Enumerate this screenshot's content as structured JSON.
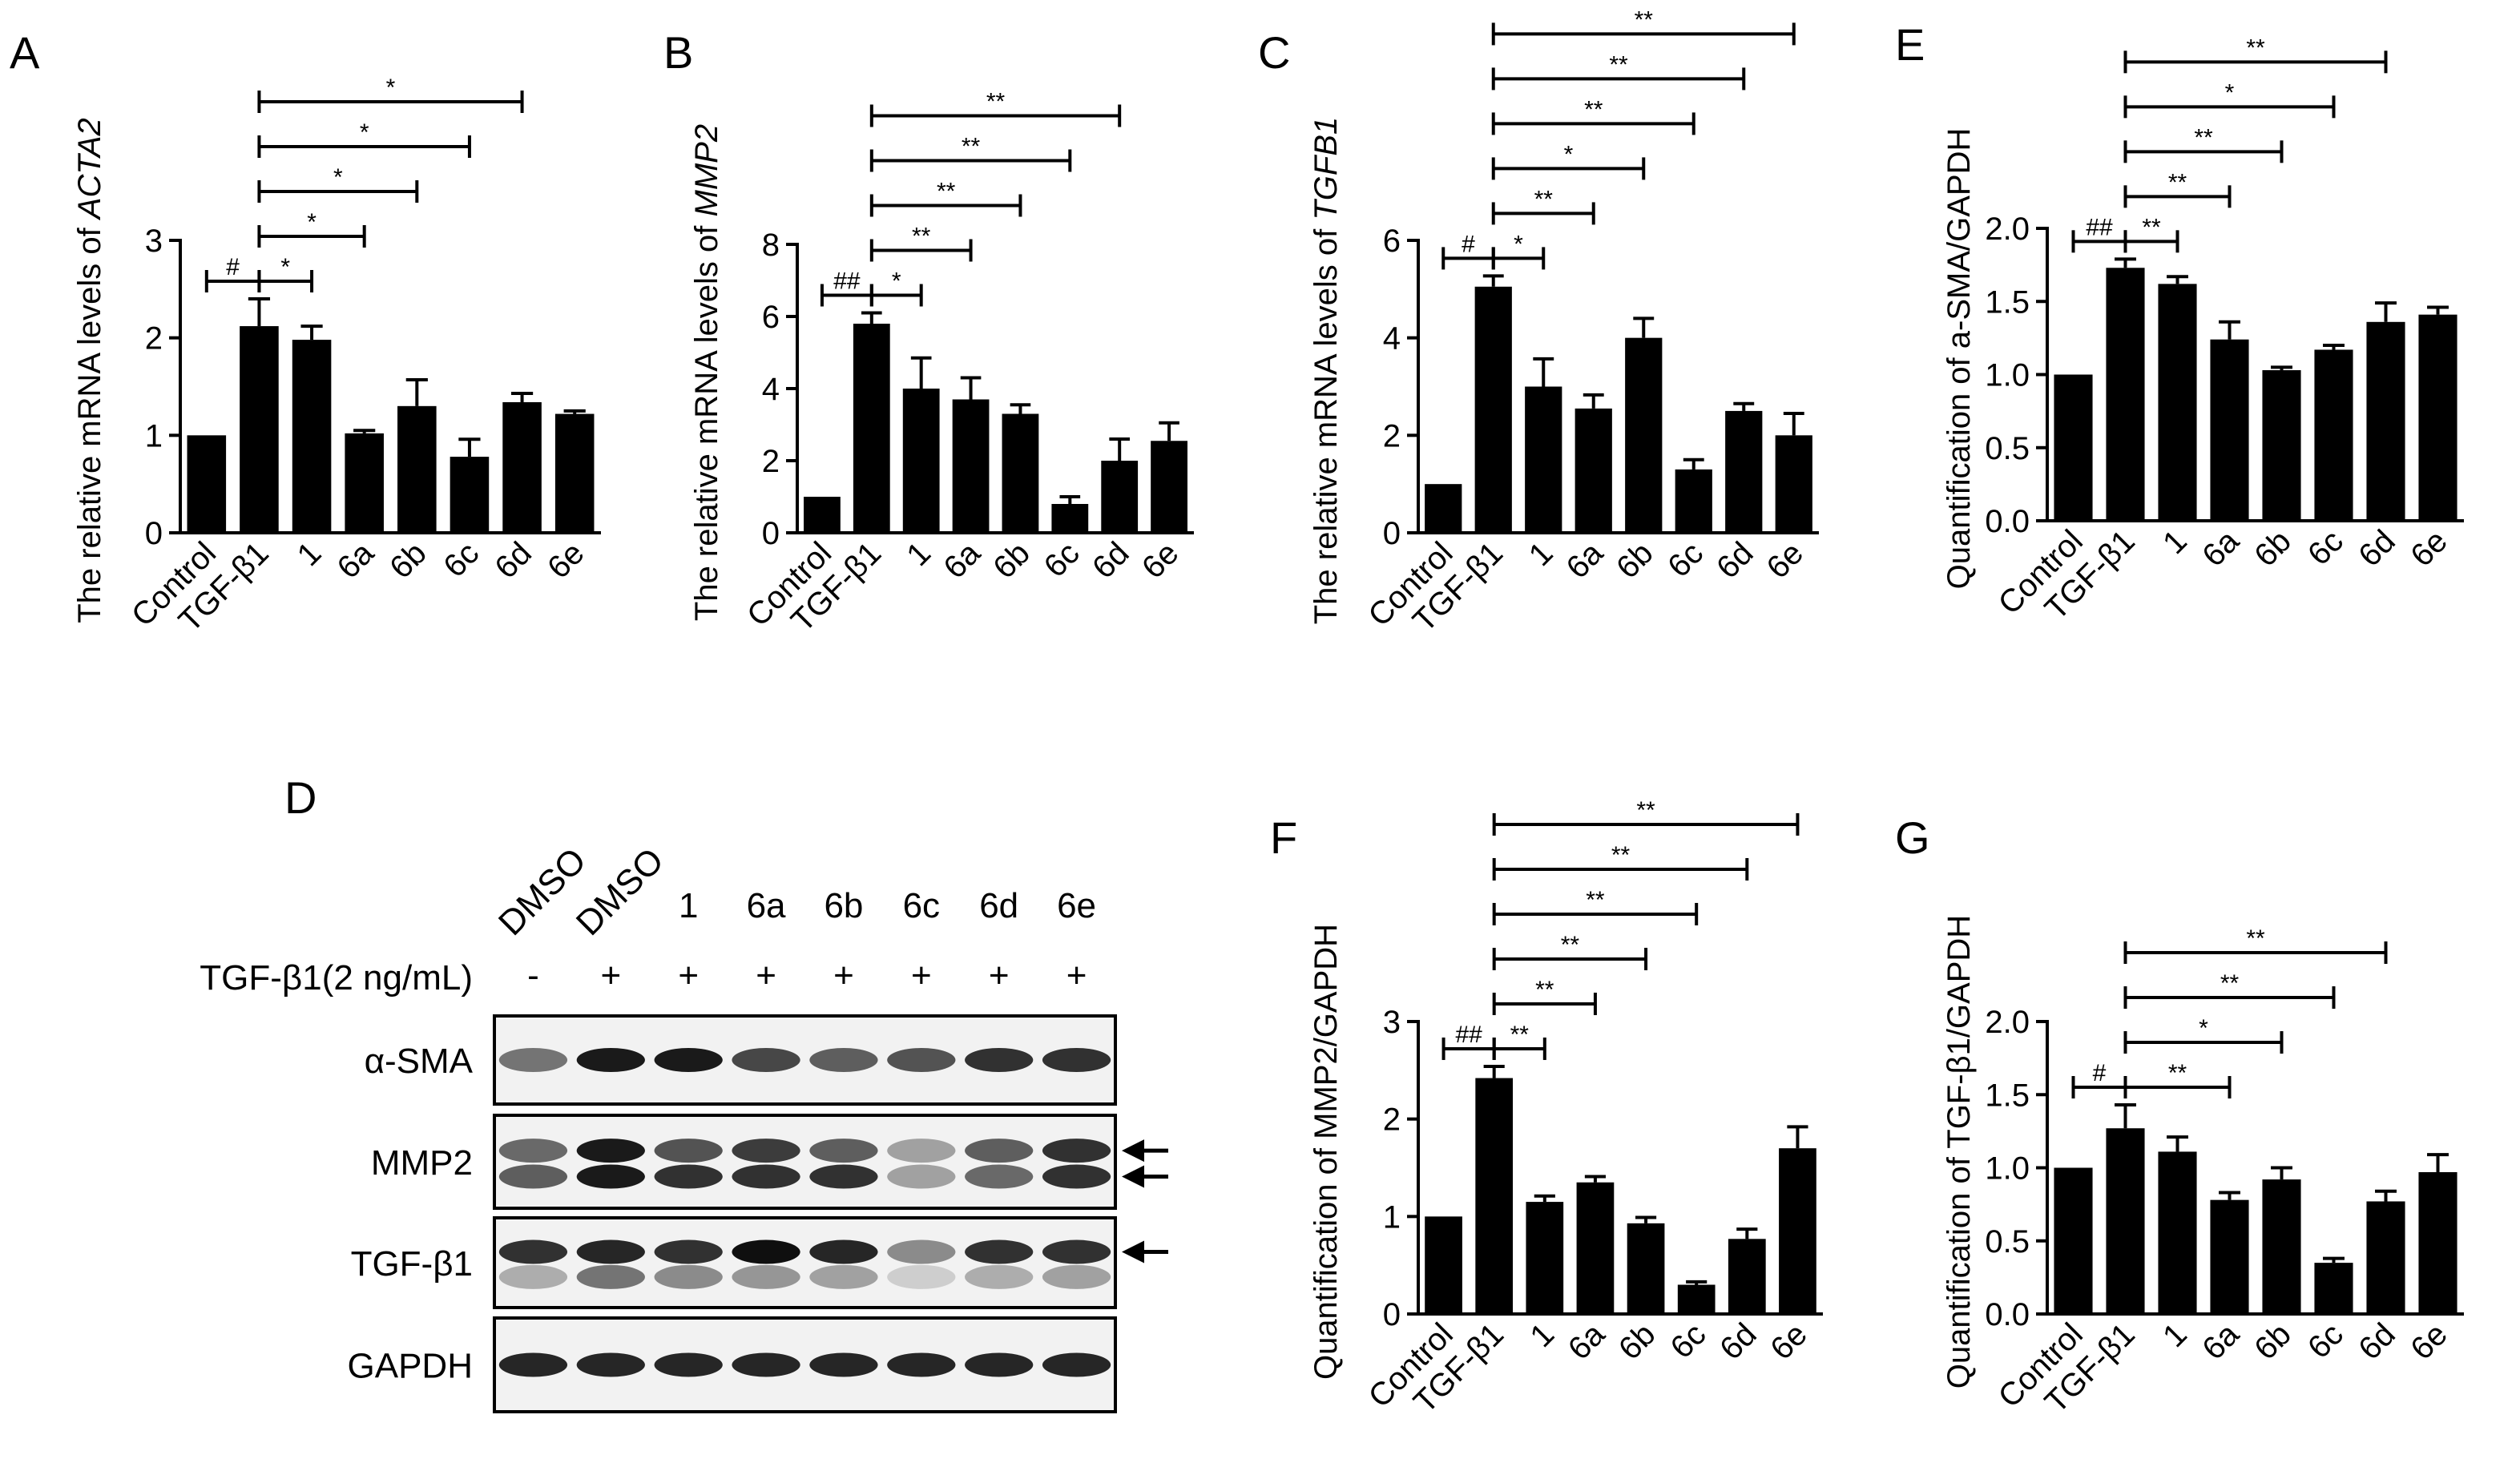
{
  "figure": {
    "panel_letters": [
      "A",
      "B",
      "C",
      "E",
      "D",
      "F",
      "G"
    ]
  },
  "chart_data": [
    {
      "panel": "A",
      "type": "bar",
      "ylabel_prefix": "The relative mRNA levels of ",
      "ylabel_gene": "ACTA2",
      "categories": [
        "Control",
        "TGF-β1",
        "1",
        "6a",
        "6b",
        "6c",
        "6d",
        "6e"
      ],
      "values": [
        1.0,
        2.12,
        1.98,
        1.02,
        1.3,
        0.78,
        1.34,
        1.22
      ],
      "errors": [
        0,
        0.28,
        0.14,
        0.03,
        0.27,
        0.18,
        0.09,
        0.03
      ],
      "ylim": [
        0,
        3
      ],
      "yticks": [
        "0",
        "1",
        "2",
        "3"
      ],
      "annotations": [
        {
          "from": 0,
          "to": 1,
          "label": "#"
        },
        {
          "from": 1,
          "to": 2,
          "label": "*"
        },
        {
          "from": 1,
          "to": 3,
          "label": "*"
        },
        {
          "from": 1,
          "to": 4,
          "label": "*"
        },
        {
          "from": 1,
          "to": 5,
          "label": "*"
        },
        {
          "from": 1,
          "to": 6,
          "label": "*"
        }
      ]
    },
    {
      "panel": "B",
      "type": "bar",
      "ylabel_prefix": "The relative mRNA levels of ",
      "ylabel_gene": "MMP2",
      "categories": [
        "Control",
        "TGF-β1",
        "1",
        "6a",
        "6b",
        "6c",
        "6d",
        "6e"
      ],
      "values": [
        1.0,
        5.8,
        4.0,
        3.7,
        3.3,
        0.8,
        2.0,
        2.55
      ],
      "errors": [
        0,
        0.3,
        0.85,
        0.6,
        0.25,
        0.2,
        0.6,
        0.5
      ],
      "ylim": [
        0,
        8
      ],
      "yticks": [
        "0",
        "2",
        "4",
        "6",
        "8"
      ],
      "annotations": [
        {
          "from": 0,
          "to": 1,
          "label": "##"
        },
        {
          "from": 1,
          "to": 2,
          "label": "*"
        },
        {
          "from": 1,
          "to": 3,
          "label": "**"
        },
        {
          "from": 1,
          "to": 4,
          "label": "**"
        },
        {
          "from": 1,
          "to": 5,
          "label": "**"
        },
        {
          "from": 1,
          "to": 6,
          "label": "**"
        }
      ]
    },
    {
      "panel": "C",
      "type": "bar",
      "ylabel_prefix": "The relative mRNA levels of ",
      "ylabel_gene": "TGFB1",
      "categories": [
        "Control",
        "TGF-β1",
        "1",
        "6a",
        "6b",
        "6c",
        "6d",
        "6e"
      ],
      "values": [
        1.0,
        5.05,
        3.0,
        2.55,
        4.0,
        1.3,
        2.5,
        2.0
      ],
      "errors": [
        0,
        0.22,
        0.57,
        0.28,
        0.4,
        0.2,
        0.15,
        0.45
      ],
      "ylim": [
        0,
        6
      ],
      "yticks": [
        "0",
        "2",
        "4",
        "6"
      ],
      "annotations": [
        {
          "from": 0,
          "to": 1,
          "label": "#"
        },
        {
          "from": 1,
          "to": 2,
          "label": "*"
        },
        {
          "from": 1,
          "to": 3,
          "label": "**"
        },
        {
          "from": 1,
          "to": 4,
          "label": "*"
        },
        {
          "from": 1,
          "to": 5,
          "label": "**"
        },
        {
          "from": 1,
          "to": 6,
          "label": "**"
        },
        {
          "from": 1,
          "to": 7,
          "label": "**"
        }
      ]
    },
    {
      "panel": "E",
      "type": "bar",
      "ylabel": "Quantification of a-SMA/GAPDH",
      "categories": [
        "Control",
        "TGF-β1",
        "1",
        "6a",
        "6b",
        "6c",
        "6d",
        "6e"
      ],
      "values": [
        1.0,
        1.73,
        1.62,
        1.24,
        1.03,
        1.17,
        1.36,
        1.41
      ],
      "errors": [
        0,
        0.06,
        0.05,
        0.12,
        0.02,
        0.03,
        0.13,
        0.05
      ],
      "ylim": [
        0,
        2
      ],
      "yticks": [
        "0.0",
        "0.5",
        "1.0",
        "1.5",
        "2.0"
      ],
      "annotations": [
        {
          "from": 0,
          "to": 1,
          "label": "##"
        },
        {
          "from": 1,
          "to": 2,
          "label": "**"
        },
        {
          "from": 1,
          "to": 3,
          "label": "**"
        },
        {
          "from": 1,
          "to": 4,
          "label": "**"
        },
        {
          "from": 1,
          "to": 5,
          "label": "*"
        },
        {
          "from": 1,
          "to": 6,
          "label": "**"
        }
      ]
    },
    {
      "panel": "F",
      "type": "bar",
      "ylabel": "Quantification of MMP2/GAPDH",
      "categories": [
        "Control",
        "TGF-β1",
        "1",
        "6a",
        "6b",
        "6c",
        "6d",
        "6e"
      ],
      "values": [
        1.0,
        2.42,
        1.15,
        1.35,
        0.93,
        0.3,
        0.77,
        1.7
      ],
      "errors": [
        0,
        0.12,
        0.06,
        0.06,
        0.06,
        0.03,
        0.1,
        0.22
      ],
      "ylim": [
        0,
        3
      ],
      "yticks": [
        "0",
        "1",
        "2",
        "3"
      ],
      "annotations": [
        {
          "from": 0,
          "to": 1,
          "label": "##"
        },
        {
          "from": 1,
          "to": 2,
          "label": "**"
        },
        {
          "from": 1,
          "to": 3,
          "label": "**"
        },
        {
          "from": 1,
          "to": 4,
          "label": "**"
        },
        {
          "from": 1,
          "to": 5,
          "label": "**"
        },
        {
          "from": 1,
          "to": 6,
          "label": "**"
        },
        {
          "from": 1,
          "to": 7,
          "label": "**"
        }
      ]
    },
    {
      "panel": "G",
      "type": "bar",
      "ylabel": "Quantification of TGF-β1/GAPDH",
      "categories": [
        "Control",
        "TGF-β1",
        "1",
        "6a",
        "6b",
        "6c",
        "6d",
        "6e"
      ],
      "values": [
        1.0,
        1.27,
        1.11,
        0.78,
        0.92,
        0.35,
        0.77,
        0.97
      ],
      "errors": [
        0,
        0.16,
        0.1,
        0.05,
        0.08,
        0.03,
        0.07,
        0.12
      ],
      "ylim": [
        0,
        2
      ],
      "yticks": [
        "0.0",
        "0.5",
        "1.0",
        "1.5",
        "2.0"
      ],
      "annotations": [
        {
          "from": 0,
          "to": 1,
          "label": "#"
        },
        {
          "from": 1,
          "to": 3,
          "label": "**"
        },
        {
          "from": 1,
          "to": 4,
          "label": "*"
        },
        {
          "from": 1,
          "to": 5,
          "label": "**"
        },
        {
          "from": 1,
          "to": 6,
          "label": "**"
        }
      ]
    }
  ],
  "blot": {
    "lanes": [
      "DMSO",
      "DMSO",
      "1",
      "6a",
      "6b",
      "6c",
      "6d",
      "6e"
    ],
    "treatment_label": "TGF-β1(2 ng/mL)",
    "treatment_signs": [
      "-",
      "+",
      "+",
      "+",
      "+",
      "+",
      "+",
      "+"
    ],
    "rows": [
      {
        "label": "α-SMA",
        "arrows": 0,
        "bands": [
          [
            0.55,
            0.95,
            0.95,
            0.75,
            0.65,
            0.7,
            0.85,
            0.85
          ]
        ]
      },
      {
        "label": "MMP2",
        "arrows": 2,
        "bands": [
          [
            0.6,
            0.95,
            0.7,
            0.8,
            0.65,
            0.35,
            0.65,
            0.85
          ],
          [
            0.65,
            0.95,
            0.85,
            0.85,
            0.85,
            0.35,
            0.6,
            0.85
          ]
        ]
      },
      {
        "label": "TGF-β1",
        "arrows": 1,
        "bands": [
          [
            0.85,
            0.9,
            0.85,
            1.0,
            0.9,
            0.45,
            0.85,
            0.85
          ],
          [
            0.3,
            0.55,
            0.45,
            0.4,
            0.35,
            0.15,
            0.3,
            0.35
          ]
        ]
      },
      {
        "label": "GAPDH",
        "arrows": 0,
        "bands": [
          [
            0.9,
            0.9,
            0.9,
            0.9,
            0.9,
            0.9,
            0.9,
            0.9
          ]
        ]
      }
    ]
  }
}
